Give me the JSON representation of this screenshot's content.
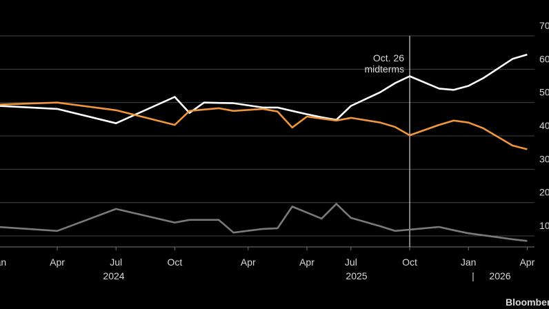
{
  "chart_data": {
    "type": "line",
    "x": [
      0,
      4,
      8,
      12,
      13,
      14,
      15,
      16,
      18,
      19,
      20,
      21,
      22,
      23,
      24,
      26,
      27,
      28,
      30,
      31,
      32,
      33,
      35,
      36
    ],
    "series": [
      {
        "color": "#ffffff",
        "values": [
          49,
          48.1,
          43.8,
          51.7,
          46.9,
          50,
          49.9,
          49.8,
          48.5,
          48.5,
          47.5,
          46.5,
          45.6,
          44.8,
          49,
          53.1,
          55.8,
          57.9,
          54.2,
          53.8,
          55,
          57.3,
          63.1,
          64.4
        ]
      },
      {
        "color": "#f0963c",
        "values": [
          49.4,
          50,
          47.7,
          43.3,
          47.5,
          47.9,
          48.3,
          47.5,
          48.1,
          47.3,
          42.5,
          45.8,
          45.2,
          44.6,
          45.4,
          44,
          42.7,
          40.2,
          43.3,
          44.6,
          44,
          42.3,
          37.1,
          36
        ]
      },
      {
        "color": "#7a7a7a",
        "values": [
          12.7,
          11.5,
          18.1,
          14,
          14.8,
          14.8,
          14.8,
          11,
          12.1,
          12.3,
          18.8,
          17,
          15.2,
          19.6,
          15.4,
          12.9,
          11.5,
          11.9,
          12.7,
          11.7,
          10.8,
          10.2,
          9,
          8.5
        ]
      }
    ],
    "xlim": [
      0.1,
      36.5
    ],
    "xticks": [
      {
        "value": 0,
        "label": "Jan"
      },
      {
        "value": 4,
        "label": "Apr"
      },
      {
        "value": 8,
        "label": "Jul"
      },
      {
        "value": 12,
        "label": "Oct"
      },
      {
        "value": 17,
        "label": "Apr"
      },
      {
        "value": 21,
        "label": "Apr"
      },
      {
        "value": 24,
        "label": "Jul"
      },
      {
        "value": 28,
        "label": "Oct"
      },
      {
        "value": 32,
        "label": "Jan"
      },
      {
        "value": 36,
        "label": "Apr"
      }
    ],
    "years": [
      "2024",
      "2025",
      "|",
      "2026"
    ],
    "ylim": [
      6.7,
      70
    ],
    "yticks": [
      70,
      60,
      50,
      40,
      30,
      20,
      10
    ],
    "grid": true,
    "annotation": {
      "x": 28,
      "lines": [
        "Oct. 26",
        "midterms"
      ]
    },
    "source": "Bloomberg"
  }
}
